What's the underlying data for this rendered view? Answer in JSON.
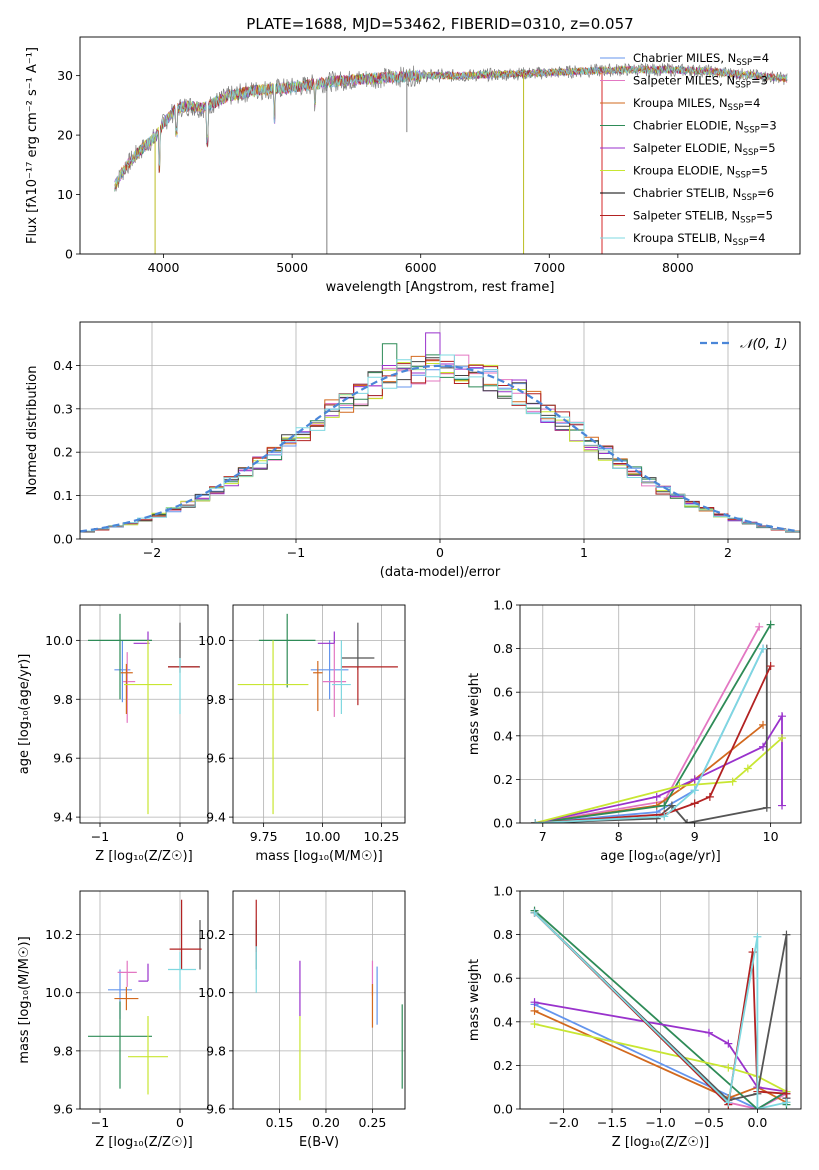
{
  "chart_data": [
    {
      "id": "spectrum",
      "type": "line",
      "title": "PLATE=1688, MJD=53462, FIBERID=0310, z=0.057",
      "xlabel": "wavelength [Angstrom, rest frame]",
      "ylabel": "Flux [fλ10⁻¹⁷ erg cm⁻² s⁻¹ A⁻¹]",
      "xlim": [
        3350,
        8950
      ],
      "ylim": [
        0,
        36.5
      ],
      "xticks": [
        4000,
        5000,
        6000,
        7000,
        8000
      ],
      "yticks": [
        0,
        10,
        20,
        30
      ],
      "grid": false,
      "legend": "upper-right",
      "continuum": {
        "x": [
          3620,
          3700,
          3800,
          3900,
          3950,
          4000,
          4100,
          4200,
          4300,
          4400,
          4500,
          4700,
          5000,
          5300,
          5600,
          6000,
          6300,
          6600,
          7000,
          7300,
          7600,
          7900,
          8200,
          8600,
          8850
        ],
        "y": [
          11.5,
          14.5,
          17.0,
          19.0,
          20.0,
          22.0,
          24.5,
          25.0,
          24.5,
          25.5,
          26.5,
          27.5,
          28.0,
          29.0,
          29.5,
          30.0,
          30.0,
          30.2,
          30.5,
          30.8,
          31.0,
          31.0,
          30.8,
          30.0,
          29.5
        ]
      },
      "spikes": [
        {
          "x": 3934,
          "y": 0,
          "color": "#bcbd22"
        },
        {
          "x": 5270,
          "y": 0,
          "color": "#7f7f7f"
        },
        {
          "x": 5892,
          "y": 20.5,
          "color": "#7f7f7f"
        },
        {
          "x": 6800,
          "y": 0,
          "color": "#bcbd22"
        },
        {
          "x": 7410,
          "y": 0,
          "color": "#d62728"
        }
      ],
      "series": [
        {
          "name": "Chabrier MILES, N_SSP=4",
          "label_main": "Chabrier MILES, N",
          "n": "4",
          "color": "#6495ed"
        },
        {
          "name": "Salpeter MILES, N_SSP=3",
          "label_main": "Salpeter MILES, N",
          "n": "3",
          "color": "#e377c2"
        },
        {
          "name": "Kroupa MILES, N_SSP=4",
          "label_main": "Kroupa MILES, N",
          "n": "4",
          "color": "#d2691e"
        },
        {
          "name": "Chabrier ELODIE, N_SSP=3",
          "label_main": "Chabrier ELODIE, N",
          "n": "3",
          "color": "#2e8b57"
        },
        {
          "name": "Salpeter ELODIE, N_SSP=5",
          "label_main": "Salpeter ELODIE, N",
          "n": "5",
          "color": "#9932cc"
        },
        {
          "name": "Kroupa ELODIE, N_SSP=5",
          "label_main": "Kroupa ELODIE, N",
          "n": "5",
          "color": "#c8e632"
        },
        {
          "name": "Chabrier STELIB, N_SSP=6",
          "label_main": "Chabrier STELIB, N",
          "n": "6",
          "color": "#000000"
        },
        {
          "name": "Salpeter STELIB, N_SSP=5",
          "label_main": "Salpeter STELIB, N",
          "n": "5",
          "color": "#b22222"
        },
        {
          "name": "Kroupa STELIB, N_SSP=4",
          "label_main": "Kroupa STELIB, N",
          "n": "4",
          "color": "#7fd8e0"
        }
      ]
    },
    {
      "id": "residuals",
      "type": "histogram",
      "xlabel": "(data-model)/error",
      "ylabel": "Normed distribution",
      "xlim": [
        -2.5,
        2.5
      ],
      "ylim": [
        0,
        0.5
      ],
      "xticks": [
        -2,
        -1,
        0,
        1,
        2
      ],
      "yticks": [
        0.0,
        0.1,
        0.2,
        0.3,
        0.4
      ],
      "grid": true,
      "legend": "upper-right",
      "reference_label": "𝒩(0, 1)",
      "reference_color": "#4a86d8"
    },
    {
      "id": "age_vs_Z",
      "type": "errorbar",
      "xlabel": "Z [log₁₀(Z/Z☉)]",
      "ylabel": "age  [log₁₀(age/yr)]",
      "xlim": [
        -1.25,
        0.35
      ],
      "ylim": [
        9.38,
        10.12
      ],
      "xticks": [
        -1,
        0
      ],
      "yticks": [
        9.4,
        9.6,
        9.8,
        10.0
      ],
      "grid": true,
      "points": [
        {
          "x": -0.72,
          "y": 9.9,
          "xerr": [
            0.1,
            0.1
          ],
          "yerr": [
            0.11,
            0.1
          ],
          "color": "#6495ed"
        },
        {
          "x": -0.66,
          "y": 9.86,
          "xerr": [
            0.05,
            0.1
          ],
          "yerr": [
            0.14,
            0.1
          ],
          "color": "#e377c2"
        },
        {
          "x": -0.67,
          "y": 9.89,
          "xerr": [
            0.07,
            0.08
          ],
          "yerr": [
            0.14,
            0.03
          ],
          "color": "#d2691e"
        },
        {
          "x": -0.75,
          "y": 10.0,
          "xerr": [
            0.4,
            0.4
          ],
          "yerr": [
            0.2,
            0.09
          ],
          "color": "#2e8b57"
        },
        {
          "x": -0.4,
          "y": 9.99,
          "xerr": [
            0.18,
            0.02
          ],
          "yerr": [
            0.0,
            0.04
          ],
          "color": "#9932cc"
        },
        {
          "x": -0.4,
          "y": 9.85,
          "xerr": [
            0.3,
            0.3
          ],
          "yerr": [
            0.44,
            0.15
          ],
          "color": "#c8e632"
        },
        {
          "x": 0.0,
          "y": 9.91,
          "xerr": [
            0.15,
            0.25
          ],
          "yerr": [
            0.02,
            0.15
          ],
          "color": "#555555"
        },
        {
          "x": 0.02,
          "y": 9.91,
          "xerr": [
            0.17,
            0.22
          ],
          "yerr": [
            0.0,
            0.0
          ],
          "color": "#b22222"
        },
        {
          "x": 0.0,
          "y": 9.83,
          "xerr": [
            0.0,
            0.0
          ],
          "yerr": [
            0.08,
            0.11
          ],
          "color": "#7fd8e0"
        }
      ]
    },
    {
      "id": "age_vs_mass",
      "type": "errorbar",
      "xlabel": "mass [log₁₀(M/M☉)]",
      "ylabel": "",
      "xlim": [
        9.62,
        10.35
      ],
      "ylim": [
        9.38,
        10.12
      ],
      "xticks": [
        9.75,
        10.0,
        10.25
      ],
      "yticks": [
        9.4,
        9.6,
        9.8,
        10.0
      ],
      "grid": true,
      "points": [
        {
          "x": 10.03,
          "y": 9.9,
          "xerr": [
            0.08,
            0.08
          ],
          "yerr": [
            0.1,
            0.1
          ],
          "color": "#6495ed"
        },
        {
          "x": 10.05,
          "y": 9.86,
          "xerr": [
            0.05,
            0.05
          ],
          "yerr": [
            0.12,
            0.14
          ],
          "color": "#e377c2"
        },
        {
          "x": 9.98,
          "y": 9.89,
          "xerr": [
            0.02,
            0.02
          ],
          "yerr": [
            0.13,
            0.04
          ],
          "color": "#d2691e"
        },
        {
          "x": 9.85,
          "y": 10.0,
          "xerr": [
            0.12,
            0.12
          ],
          "yerr": [
            0.16,
            0.09
          ],
          "color": "#2e8b57"
        },
        {
          "x": 10.05,
          "y": 9.99,
          "xerr": [
            0.07,
            0.0
          ],
          "yerr": [
            0.0,
            0.04
          ],
          "color": "#9932cc"
        },
        {
          "x": 9.79,
          "y": 9.85,
          "xerr": [
            0.15,
            0.15
          ],
          "yerr": [
            0.44,
            0.15
          ],
          "color": "#c8e632"
        },
        {
          "x": 10.15,
          "y": 9.94,
          "xerr": [
            0.07,
            0.07
          ],
          "yerr": [
            0.04,
            0.12
          ],
          "color": "#555555"
        },
        {
          "x": 10.15,
          "y": 9.91,
          "xerr": [
            0.07,
            0.17
          ],
          "yerr": [
            0.13,
            0.0
          ],
          "color": "#b22222"
        },
        {
          "x": 10.08,
          "y": 9.85,
          "xerr": [
            0.04,
            0.04
          ],
          "yerr": [
            0.1,
            0.15
          ],
          "color": "#7fd8e0"
        }
      ]
    },
    {
      "id": "mass_weight_vs_age",
      "type": "line",
      "xlabel": "age  [log₁₀(age/yr)]",
      "ylabel": "mass weight",
      "xlim": [
        6.7,
        10.4
      ],
      "ylim": [
        0,
        1.0
      ],
      "xticks": [
        7,
        8,
        9,
        10
      ],
      "yticks": [
        0.0,
        0.2,
        0.4,
        0.6,
        0.8,
        1.0
      ],
      "grid": true,
      "series": [
        {
          "x": [
            6.9,
            8.5,
            9.0,
            9.9
          ],
          "y": [
            0.0,
            0.05,
            0.15,
            0.8
          ],
          "color": "#6495ed"
        },
        {
          "x": [
            6.9,
            8.6,
            9.85
          ],
          "y": [
            0.0,
            0.1,
            0.9
          ],
          "color": "#e377c2"
        },
        {
          "x": [
            6.9,
            8.5,
            9.0,
            9.9
          ],
          "y": [
            0.0,
            0.08,
            0.2,
            0.45
          ],
          "color": "#d2691e"
        },
        {
          "x": [
            6.9,
            8.6,
            10.0
          ],
          "y": [
            0.0,
            0.08,
            0.91
          ],
          "color": "#2e8b57"
        },
        {
          "x": [
            6.9,
            8.5,
            9.0,
            9.9,
            10.15,
            10.15
          ],
          "y": [
            0.0,
            0.12,
            0.2,
            0.35,
            0.49,
            0.08
          ],
          "color": "#9932cc"
        },
        {
          "x": [
            6.9,
            8.8,
            9.5,
            9.7,
            10.15
          ],
          "y": [
            0.0,
            0.17,
            0.19,
            0.25,
            0.39
          ],
          "color": "#c8e632"
        },
        {
          "x": [
            6.9,
            8.5,
            8.7,
            8.9,
            9.95,
            9.95
          ],
          "y": [
            0.0,
            0.02,
            0.08,
            0.0,
            0.07,
            0.8
          ],
          "color": "#555555"
        },
        {
          "x": [
            6.9,
            8.6,
            9.0,
            9.2,
            10.0
          ],
          "y": [
            0.0,
            0.04,
            0.09,
            0.12,
            0.72
          ],
          "color": "#b22222"
        },
        {
          "x": [
            6.9,
            8.6,
            9.0,
            9.9
          ],
          "y": [
            0.0,
            0.03,
            0.15,
            0.8
          ],
          "color": "#7fd8e0"
        }
      ]
    },
    {
      "id": "mass_vs_Z",
      "type": "errorbar",
      "xlabel": "Z [log₁₀(Z/Z☉)]",
      "ylabel": "mass [log₁₀(M/M☉)]",
      "xlim": [
        -1.25,
        0.35
      ],
      "ylim": [
        9.6,
        10.35
      ],
      "xticks": [
        -1,
        0
      ],
      "yticks": [
        9.6,
        9.8,
        10.0,
        10.2
      ],
      "grid": true,
      "points": [
        {
          "x": -0.75,
          "y": 10.01,
          "xerr": [
            0.15,
            0.15
          ],
          "yerr": [
            0.1,
            0.07
          ],
          "color": "#6495ed"
        },
        {
          "x": -0.66,
          "y": 10.07,
          "xerr": [
            0.12,
            0.12
          ],
          "yerr": [
            0.05,
            0.04
          ],
          "color": "#e377c2"
        },
        {
          "x": -0.67,
          "y": 9.98,
          "xerr": [
            0.15,
            0.15
          ],
          "yerr": [
            0.04,
            0.04
          ],
          "color": "#d2691e"
        },
        {
          "x": -0.75,
          "y": 9.85,
          "xerr": [
            0.4,
            0.4
          ],
          "yerr": [
            0.18,
            0.12
          ],
          "color": "#2e8b57"
        },
        {
          "x": -0.4,
          "y": 10.04,
          "xerr": [
            0.12,
            0.0
          ],
          "yerr": [
            0.0,
            0.06
          ],
          "color": "#9932cc"
        },
        {
          "x": -0.4,
          "y": 9.78,
          "xerr": [
            0.25,
            0.25
          ],
          "yerr": [
            0.13,
            0.14
          ],
          "color": "#c8e632"
        },
        {
          "x": 0.25,
          "y": 10.15,
          "xerr": [
            0.0,
            0.0
          ],
          "yerr": [
            0.07,
            0.1
          ],
          "color": "#555555"
        },
        {
          "x": 0.02,
          "y": 10.15,
          "xerr": [
            0.15,
            0.25
          ],
          "yerr": [
            0.07,
            0.17
          ],
          "color": "#b22222"
        },
        {
          "x": 0.0,
          "y": 10.08,
          "xerr": [
            0.15,
            0.2
          ],
          "yerr": [
            0.07,
            0.06
          ],
          "color": "#7fd8e0"
        }
      ]
    },
    {
      "id": "mass_vs_EBV",
      "type": "errorbar",
      "xlabel": "E(B-V)",
      "ylabel": "",
      "xlim": [
        0.1,
        0.285
      ],
      "ylim": [
        9.6,
        10.35
      ],
      "xticks": [
        0.15,
        0.2,
        0.25
      ],
      "yticks": [
        9.6,
        9.8,
        10.0,
        10.2
      ],
      "grid": true,
      "points": [
        {
          "x": 0.255,
          "y": 10.01,
          "xerr": [
            0.0,
            0.0
          ],
          "yerr": [
            0.12,
            0.08
          ],
          "color": "#6495ed"
        },
        {
          "x": 0.25,
          "y": 10.07,
          "xerr": [
            0.0,
            0.0
          ],
          "yerr": [
            0.08,
            0.04
          ],
          "color": "#e377c2"
        },
        {
          "x": 0.25,
          "y": 9.98,
          "xerr": [
            0.0,
            0.0
          ],
          "yerr": [
            0.1,
            0.05
          ],
          "color": "#d2691e"
        },
        {
          "x": 0.282,
          "y": 9.85,
          "xerr": [
            0.0,
            0.0
          ],
          "yerr": [
            0.18,
            0.11
          ],
          "color": "#2e8b57"
        },
        {
          "x": 0.172,
          "y": 10.05,
          "xerr": [
            0.0,
            0.0
          ],
          "yerr": [
            0.13,
            0.06
          ],
          "color": "#9932cc"
        },
        {
          "x": 0.172,
          "y": 9.78,
          "xerr": [
            0.0,
            0.0
          ],
          "yerr": [
            0.15,
            0.14
          ],
          "color": "#c8e632"
        },
        {
          "x": 0.125,
          "y": 10.15,
          "xerr": [
            0.0,
            0.0
          ],
          "yerr": [
            0.07,
            0.1
          ],
          "color": "#555555"
        },
        {
          "x": 0.125,
          "y": 10.2,
          "xerr": [
            0.0,
            0.0
          ],
          "yerr": [
            0.06,
            0.12
          ],
          "color": "#b22222"
        },
        {
          "x": 0.125,
          "y": 10.08,
          "xerr": [
            0.0,
            0.0
          ],
          "yerr": [
            0.08,
            0.08
          ],
          "color": "#7fd8e0"
        }
      ]
    },
    {
      "id": "mass_weight_vs_Z",
      "type": "line",
      "xlabel": "Z [log₁₀(Z/Z☉)]",
      "ylabel": "mass weight",
      "xlim": [
        -2.45,
        0.45
      ],
      "ylim": [
        0,
        1.0
      ],
      "xticks": [
        -2.0,
        -1.5,
        -1.0,
        -0.5,
        0.0
      ],
      "yticks": [
        0.0,
        0.2,
        0.4,
        0.6,
        0.8,
        1.0
      ],
      "grid": true,
      "series": [
        {
          "x": [
            -2.3,
            0.0,
            0.3,
            0.3
          ],
          "y": [
            0.48,
            0.0,
            0.08,
            0.03
          ],
          "color": "#6495ed"
        },
        {
          "x": [
            -2.3,
            -0.3,
            0.0,
            0.3
          ],
          "y": [
            0.9,
            0.03,
            0.0,
            0.07
          ],
          "color": "#e377c2"
        },
        {
          "x": [
            -2.3,
            -0.3,
            0.0,
            0.3
          ],
          "y": [
            0.45,
            0.05,
            0.1,
            0.03
          ],
          "color": "#d2691e"
        },
        {
          "x": [
            -2.3,
            0.0,
            0.3,
            0.3
          ],
          "y": [
            0.91,
            0.0,
            0.08,
            0.02
          ],
          "color": "#2e8b57"
        },
        {
          "x": [
            -2.3,
            -0.5,
            -0.3,
            0.0,
            0.3,
            0.3
          ],
          "y": [
            0.49,
            0.35,
            0.3,
            0.1,
            0.08,
            0.05
          ],
          "color": "#9932cc"
        },
        {
          "x": [
            -2.3,
            -0.3,
            0.0,
            0.3
          ],
          "y": [
            0.39,
            0.19,
            0.15,
            0.08
          ],
          "color": "#c8e632"
        },
        {
          "x": [
            -2.3,
            -0.3,
            0.0,
            0.3,
            0.3
          ],
          "y": [
            0.9,
            0.04,
            0.07,
            0.8,
            0.05
          ],
          "color": "#555555"
        },
        {
          "x": [
            -2.3,
            -0.3,
            -0.05,
            0.0,
            0.3
          ],
          "y": [
            0.9,
            0.02,
            0.72,
            0.08,
            0.07
          ],
          "color": "#b22222"
        },
        {
          "x": [
            -2.3,
            -0.3,
            0.0,
            0.0,
            0.3
          ],
          "y": [
            0.9,
            0.03,
            0.79,
            0.0,
            0.03
          ],
          "color": "#7fd8e0"
        }
      ]
    }
  ]
}
